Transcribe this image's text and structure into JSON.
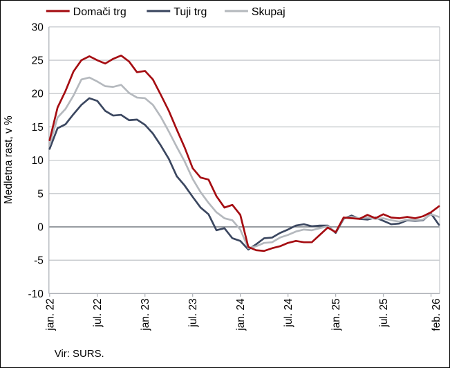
{
  "chart_data": {
    "type": "line",
    "title": "",
    "ylabel": "Medletna rast, v %",
    "xlabel": "",
    "ylim": [
      -10,
      30
    ],
    "ytick_step": 5,
    "grid": "horizontal",
    "legend_position": "top",
    "x_start": "2022-01",
    "x_end": "2026-02",
    "x_tick_labels": [
      "jan. 22",
      "jul. 22",
      "jan. 23",
      "jul. 23",
      "jan. 24",
      "jul. 24",
      "jan. 25",
      "jul. 25",
      "feb. 26"
    ],
    "background_color": "#FFFFFF",
    "gridline_color": "#C6C9CD",
    "zero_line_color": "#596069",
    "axis_color": "#AEB2B8",
    "series": [
      {
        "name": "Domači trg",
        "color": "#A50D12",
        "values": [
          13.0,
          17.9,
          20.4,
          23.3,
          25.0,
          25.6,
          25.0,
          24.5,
          25.2,
          25.7,
          24.8,
          23.2,
          23.4,
          22.1,
          19.8,
          17.4,
          14.6,
          11.9,
          8.8,
          7.4,
          7.1,
          4.6,
          2.9,
          3.3,
          1.8,
          -3.0,
          -3.5,
          -3.6,
          -3.2,
          -2.9,
          -2.4,
          -2.1,
          -2.3,
          -2.3,
          -1.2,
          -0.1,
          -0.8,
          1.4,
          1.3,
          1.2,
          1.8,
          1.3,
          1.9,
          1.4,
          1.3,
          1.5,
          1.3,
          1.6,
          2.2,
          3.1
        ]
      },
      {
        "name": "Tuji trg",
        "color": "#3B4760",
        "values": [
          11.7,
          14.8,
          15.4,
          16.9,
          18.3,
          19.3,
          18.9,
          17.4,
          16.7,
          16.8,
          16.0,
          16.1,
          15.3,
          14.0,
          12.2,
          10.2,
          7.6,
          6.2,
          4.5,
          2.9,
          1.9,
          -0.5,
          -0.2,
          -1.7,
          -2.1,
          -3.4,
          -2.6,
          -1.7,
          -1.6,
          -0.9,
          -0.4,
          0.2,
          0.4,
          0.1,
          0.2,
          0.2,
          -0.9,
          1.2,
          1.7,
          1.2,
          1.1,
          1.4,
          0.9,
          0.4,
          0.5,
          1.0,
          0.9,
          1.0,
          2.0,
          0.3
        ]
      },
      {
        "name": "Skupaj",
        "color": "#B5B9BE",
        "values": [
          12.3,
          16.4,
          17.7,
          19.7,
          22.1,
          22.4,
          21.8,
          21.1,
          21.0,
          21.3,
          20.1,
          19.4,
          19.3,
          18.3,
          16.5,
          14.3,
          12.0,
          9.8,
          7.2,
          5.2,
          3.6,
          2.2,
          1.3,
          1.0,
          -0.4,
          -3.2,
          -2.9,
          -2.4,
          -2.3,
          -1.6,
          -1.2,
          -0.7,
          -0.4,
          -0.5,
          -0.2,
          0.1,
          -0.8,
          1.3,
          1.5,
          1.3,
          1.4,
          1.2,
          1.3,
          1.0,
          0.8,
          1.1,
          1.0,
          1.1,
          1.9,
          1.5
        ]
      }
    ],
    "source": "Vir: SURS."
  }
}
